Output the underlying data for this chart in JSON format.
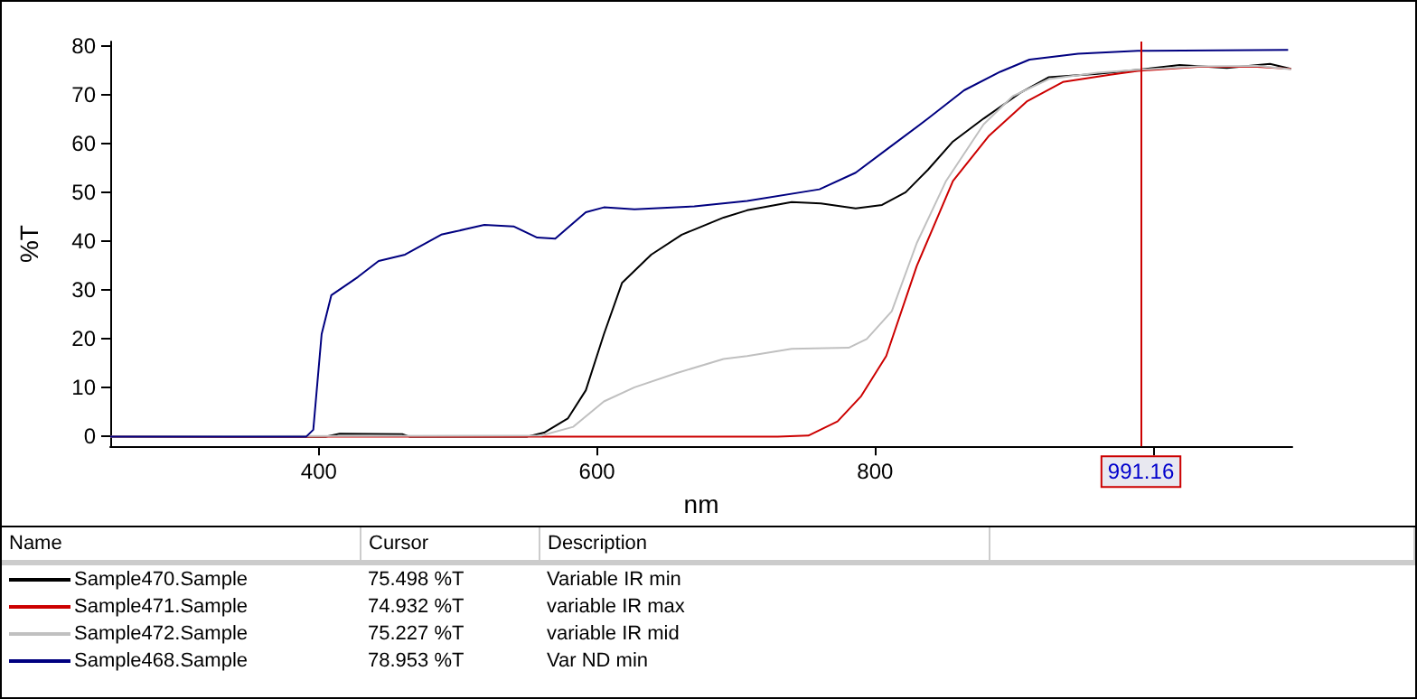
{
  "chart_data": {
    "type": "line",
    "xlabel": "nm",
    "ylabel": "%T",
    "xlim": [
      250,
      1100
    ],
    "xticks": [
      400,
      600,
      800,
      {
        "value": 1000,
        "label": null
      }
    ],
    "ylim": [
      -2,
      81
    ],
    "yticks": [
      0,
      10,
      20,
      30,
      40,
      50,
      60,
      70,
      80
    ],
    "grid": false,
    "legend": "bottom",
    "marker": "none",
    "line_style": "solid",
    "ref_lines": [
      {
        "axis": "x",
        "value": 991.16,
        "label": "991.16",
        "color": "#cc0000"
      }
    ],
    "annotations": [
      "Name",
      "Cursor",
      "Description",
      "75.498 %T",
      "Variable IR min",
      "74.932 %T",
      "variable IR max",
      "75.227 %T",
      "variable IR mid",
      "78.953 %T",
      "Var ND min"
    ],
    "series": [
      {
        "name": "Sample470.Sample",
        "color": "#000000",
        "x": [
          250,
          405,
          415,
          460,
          465,
          550,
          562,
          579,
          592,
          605,
          618,
          639,
          661,
          691,
          708,
          740,
          761,
          786,
          805,
          822,
          838,
          856,
          878,
          904,
          925,
          960,
          989,
          1019,
          1053,
          1084,
          1099
        ],
        "values": [
          0,
          0,
          0.6,
          0.5,
          0,
          0,
          0.8,
          3.7,
          9.5,
          21,
          31.5,
          37.3,
          41.4,
          44.9,
          46.4,
          48.1,
          47.8,
          46.8,
          47.5,
          50.1,
          54.7,
          60.5,
          65.2,
          70.4,
          73.7,
          74.4,
          75.2,
          76.2,
          75.6,
          76.4,
          75.4
        ]
      },
      {
        "name": "Sample471.Sample",
        "color": "#cc0000",
        "x": [
          250,
          700,
          730,
          752,
          773,
          790,
          808,
          830,
          856,
          882,
          909,
          935,
          969,
          989,
          1032,
          1075,
          1099
        ],
        "values": [
          0,
          0,
          0,
          0.2,
          3.1,
          8.3,
          16.5,
          35,
          52.4,
          61.7,
          68.7,
          72.7,
          74.2,
          75,
          75.8,
          75.8,
          75.4
        ]
      },
      {
        "name": "Sample472.Sample",
        "color": "#c0c0c0",
        "x": [
          250,
          560,
          583,
          605,
          627,
          657,
          691,
          708,
          740,
          781,
          794,
          812,
          830,
          851,
          878,
          899,
          925,
          960,
          989,
          1032,
          1075,
          1099
        ],
        "values": [
          0,
          0.2,
          2,
          7.2,
          10.1,
          13,
          15.9,
          16.5,
          18,
          18.2,
          20,
          25.7,
          39.7,
          52.4,
          64,
          69.8,
          73.3,
          74.6,
          75.2,
          75.9,
          76,
          75.3
        ]
      },
      {
        "name": "Sample468.Sample",
        "color": "#000080",
        "x": [
          250,
          391,
          396,
          402,
          409,
          428,
          443,
          462,
          488,
          519,
          540,
          557,
          570,
          592,
          605,
          627,
          670,
          708,
          760,
          786,
          808,
          838,
          864,
          890,
          911,
          946,
          989,
          1097
        ],
        "values": [
          0,
          0,
          1.4,
          21,
          29,
          32.7,
          36,
          37.3,
          41.4,
          43.4,
          43.1,
          40.8,
          40.6,
          46,
          47,
          46.6,
          47.2,
          48.3,
          50.7,
          54.1,
          58.8,
          65.2,
          71,
          74.8,
          77.3,
          78.5,
          79.1,
          79.3
        ]
      }
    ]
  }
}
